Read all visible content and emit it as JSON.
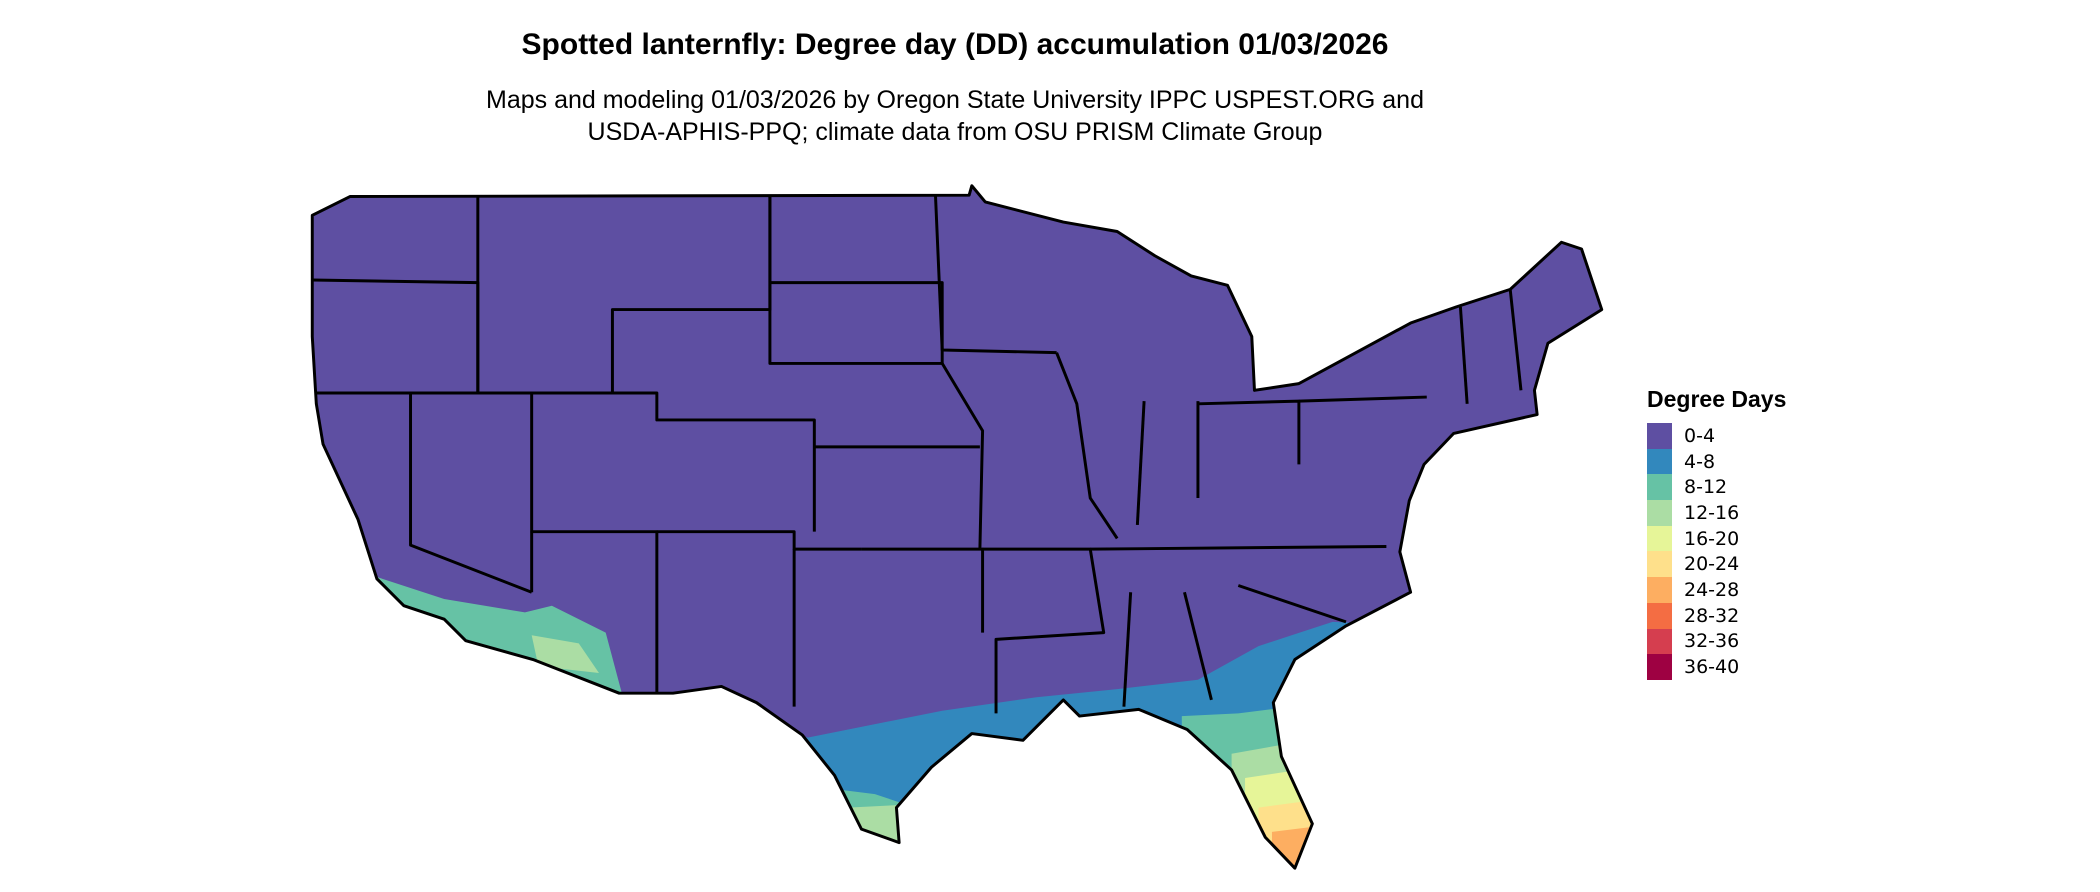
{
  "title": "Spotted lanternfly: Degree day (DD) accumulation 01/03/2026",
  "subtitle_lines": [
    "Maps and modeling 01/03/2026 by Oregon State University IPPC USPEST.ORG and",
    "USDA-APHIS-PPQ; climate data from OSU PRISM Climate Group"
  ],
  "map": {
    "region": "Contiguous United States",
    "boundaries": "state outlines in black",
    "base_color": "#5E4FA2"
  },
  "legend": {
    "title": "Degree Days",
    "placement": "right",
    "items": [
      {
        "label": "0-4",
        "color": "#5E4FA2"
      },
      {
        "label": "4-8",
        "color": "#3288BD"
      },
      {
        "label": "8-12",
        "color": "#66C2A5"
      },
      {
        "label": "12-16",
        "color": "#ABDDA4"
      },
      {
        "label": "16-20",
        "color": "#E6F598"
      },
      {
        "label": "20-24",
        "color": "#FEE08B"
      },
      {
        "label": "24-28",
        "color": "#FDAE61"
      },
      {
        "label": "28-32",
        "color": "#F46D43"
      },
      {
        "label": "32-36",
        "color": "#D53E4F"
      },
      {
        "label": "36-40",
        "color": "#9E0142"
      }
    ]
  }
}
